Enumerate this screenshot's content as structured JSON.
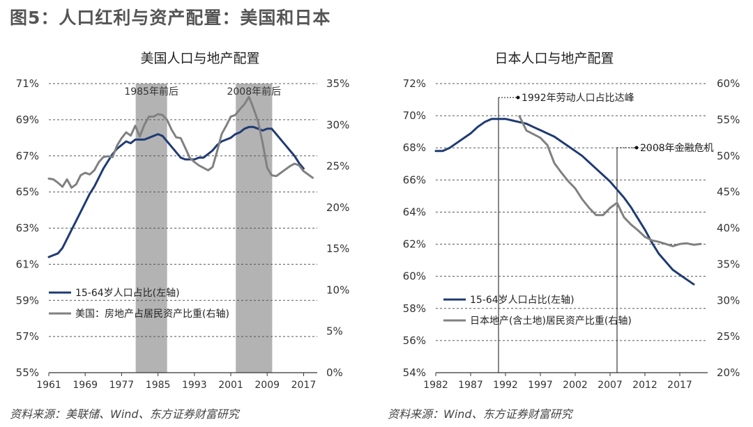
{
  "figure_title": "图5：人口红利与资产配置：美国和日本",
  "sources": {
    "left": "资料来源：美联储、Wind、东方证券财富研究",
    "right": "资料来源：Wind、东方证券财富研究"
  },
  "colors": {
    "pop": "#1f3b73",
    "asset": "#808080",
    "shade": "#b3b3b3",
    "grid": "#555555"
  },
  "chart_data": [
    {
      "type": "line",
      "title": "美国人口与地产配置",
      "x_ticks": [
        "1961",
        "1969",
        "1977",
        "1985",
        "1993",
        "2001",
        "2009",
        "2017"
      ],
      "xlim": [
        1961,
        2020
      ],
      "y_left": {
        "ticks": [
          "71%",
          "69%",
          "67%",
          "65%",
          "63%",
          "61%",
          "59%",
          "57%",
          "55%"
        ],
        "lim": [
          55,
          71
        ],
        "unit": "%"
      },
      "y_right": {
        "ticks": [
          "35%",
          "30%",
          "25%",
          "20%",
          "15%",
          "10%",
          "5%",
          "0%"
        ],
        "lim": [
          0,
          35
        ],
        "unit": "%"
      },
      "grid": true,
      "legend_position": "lower-left",
      "shaded_periods": [
        {
          "label": "1985年前后",
          "start": 1980.1,
          "end": 1987.0
        },
        {
          "label": "2008年前后",
          "start": 2002.1,
          "end": 2010.1
        }
      ],
      "series": [
        {
          "name": "15-64岁人口占比(左轴)",
          "axis": "left",
          "color_key": "pop",
          "x": [
            1961,
            1962,
            1963,
            1964,
            1965,
            1966,
            1967,
            1968,
            1969,
            1970,
            1971,
            1972,
            1973,
            1974,
            1975,
            1976,
            1977,
            1978,
            1979,
            1980,
            1981,
            1982,
            1983,
            1984,
            1985,
            1986,
            1987,
            1988,
            1989,
            1990,
            1991,
            1992,
            1993,
            1994,
            1995,
            1996,
            1997,
            1998,
            1999,
            2000,
            2001,
            2002,
            2003,
            2004,
            2005,
            2006,
            2007,
            2008,
            2009,
            2010,
            2011,
            2012,
            2013,
            2014,
            2015,
            2016,
            2017,
            2018,
            2019,
            2020
          ],
          "y": [
            61.4,
            61.5,
            61.6,
            61.9,
            62.4,
            62.9,
            63.4,
            63.9,
            64.4,
            64.9,
            65.3,
            65.8,
            66.3,
            66.7,
            67.1,
            67.4,
            67.6,
            67.8,
            67.7,
            67.9,
            67.9,
            67.9,
            68.0,
            68.1,
            68.2,
            68.1,
            67.8,
            67.5,
            67.2,
            66.9,
            66.8,
            66.8,
            66.8,
            66.9,
            66.9,
            67.1,
            67.3,
            67.6,
            67.8,
            67.9,
            68.0,
            68.2,
            68.3,
            68.5,
            68.6,
            68.6,
            68.5,
            68.4,
            68.5,
            68.5,
            68.2,
            67.9,
            67.6,
            67.3,
            67.0,
            66.6,
            66.3,
            null,
            null,
            null
          ]
        },
        {
          "name": "美国：房地产占居民资产比重(右轴)",
          "axis": "right",
          "color_key": "asset",
          "x": [
            1961,
            1962,
            1963,
            1964,
            1965,
            1966,
            1967,
            1968,
            1969,
            1970,
            1971,
            1972,
            1973,
            1974,
            1975,
            1976,
            1977,
            1978,
            1979,
            1980,
            1981,
            1982,
            1983,
            1984,
            1985,
            1986,
            1987,
            1988,
            1989,
            1990,
            1991,
            1992,
            1993,
            1994,
            1995,
            1996,
            1997,
            1998,
            1999,
            2000,
            2001,
            2002,
            2003,
            2004,
            2005,
            2006,
            2007,
            2008,
            2009,
            2010,
            2011,
            2012,
            2013,
            2014,
            2015,
            2016,
            2017,
            2018,
            2019
          ],
          "y": [
            23.5,
            23.4,
            23.0,
            22.5,
            23.4,
            22.4,
            22.8,
            23.9,
            24.2,
            24.0,
            24.5,
            25.5,
            26.1,
            26.2,
            26.1,
            27.5,
            28.4,
            29.1,
            28.7,
            29.9,
            28.6,
            30.0,
            31.0,
            31.0,
            31.3,
            31.2,
            30.6,
            29.4,
            28.5,
            28.4,
            27.2,
            26.0,
            25.5,
            25.1,
            24.8,
            24.5,
            24.9,
            26.8,
            28.9,
            29.9,
            31.0,
            31.2,
            31.9,
            32.5,
            33.4,
            32.0,
            30.4,
            27.8,
            24.8,
            23.9,
            23.8,
            24.2,
            24.6,
            25.0,
            25.3,
            25.1,
            24.4,
            24.0,
            23.6
          ]
        }
      ]
    },
    {
      "type": "line",
      "title": "日本人口与地产配置",
      "x_ticks": [
        "1982",
        "1987",
        "1992",
        "1997",
        "2002",
        "2007",
        "2012",
        "2017"
      ],
      "xlim": [
        1982,
        2021
      ],
      "y_left": {
        "ticks": [
          "72%",
          "70%",
          "68%",
          "66%",
          "64%",
          "62%",
          "60%",
          "58%",
          "56%",
          "54%"
        ],
        "lim": [
          54,
          72
        ],
        "unit": "%"
      },
      "y_right": {
        "ticks": [
          "60%",
          "55%",
          "50%",
          "45%",
          "40%",
          "35%",
          "30%",
          "25%",
          "20%"
        ],
        "lim": [
          20,
          60
        ],
        "unit": "%"
      },
      "grid": true,
      "legend_position": "lower-left",
      "annotations": [
        {
          "label": "1992年劳动人口占比达峰",
          "x": 1991.0
        },
        {
          "label": "2008年金融危机",
          "x": 2008.0
        }
      ],
      "series": [
        {
          "name": "15-64岁人口占比(左轴)",
          "axis": "left",
          "color_key": "pop",
          "x": [
            1982,
            1983,
            1984,
            1985,
            1986,
            1987,
            1988,
            1989,
            1990,
            1991,
            1992,
            1993,
            1994,
            1995,
            1996,
            1997,
            1998,
            1999,
            2000,
            2001,
            2002,
            2003,
            2004,
            2005,
            2006,
            2007,
            2008,
            2009,
            2010,
            2011,
            2012,
            2013,
            2014,
            2015,
            2016,
            2017,
            2018,
            2019,
            2020
          ],
          "y": [
            67.8,
            67.8,
            68.0,
            68.3,
            68.6,
            68.9,
            69.3,
            69.6,
            69.8,
            69.8,
            69.8,
            69.7,
            69.6,
            69.5,
            69.3,
            69.1,
            68.9,
            68.7,
            68.4,
            68.1,
            67.8,
            67.5,
            67.1,
            66.7,
            66.3,
            65.9,
            65.4,
            64.9,
            64.3,
            63.6,
            62.9,
            62.1,
            61.4,
            60.9,
            60.4,
            60.1,
            59.8,
            59.5,
            null
          ]
        },
        {
          "name": "日本地产(含土地)居民资产比重(右轴)",
          "axis": "right",
          "color_key": "asset",
          "x": [
            1994,
            1995,
            1996,
            1997,
            1998,
            1999,
            2000,
            2001,
            2002,
            2003,
            2004,
            2005,
            2006,
            2007,
            2008,
            2009,
            2010,
            2011,
            2012,
            2013,
            2014,
            2015,
            2016,
            2017,
            2018,
            2019,
            2020
          ],
          "y": [
            55.5,
            53.5,
            53.0,
            52.5,
            51.5,
            49.0,
            47.7,
            46.5,
            45.5,
            44.0,
            42.8,
            41.8,
            41.8,
            42.8,
            43.5,
            41.5,
            40.5,
            39.7,
            38.8,
            38.3,
            38.1,
            37.8,
            37.5,
            37.8,
            37.9,
            37.7,
            37.8
          ]
        }
      ]
    }
  ]
}
